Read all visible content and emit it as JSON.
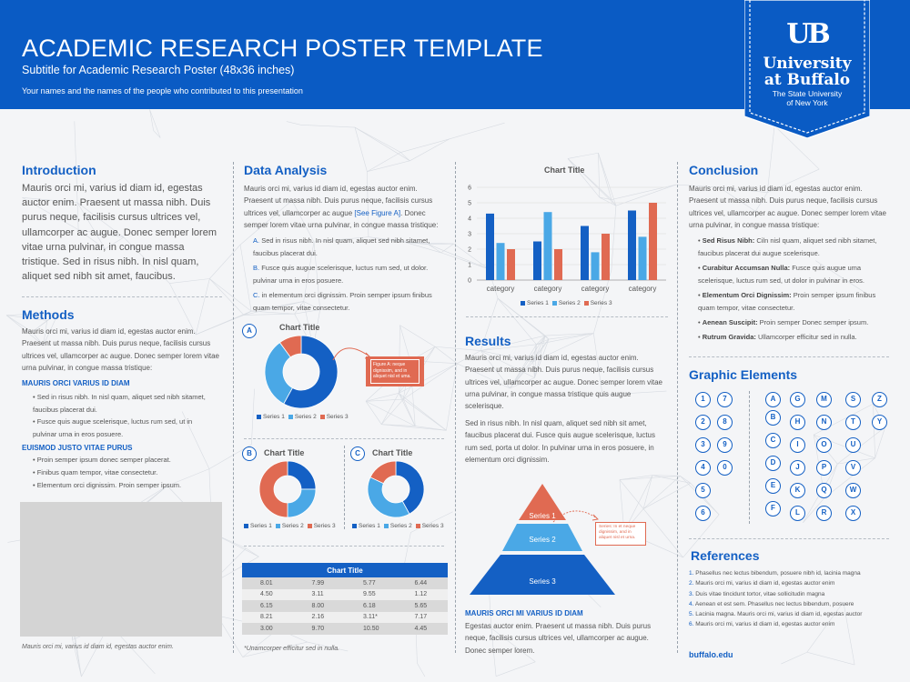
{
  "header": {
    "title": "ACADEMIC RESEARCH POSTER TEMPLATE",
    "subtitle": "Subtitle for Academic Research Poster (48x36 inches)",
    "authors": "Your names and the names of the people who contributed to this presentation"
  },
  "logo": {
    "monogram": "UB",
    "line1": "University",
    "line2": "at Buffalo",
    "line3": "The State University",
    "line4": "of New York",
    "color": "#0a5bc4"
  },
  "introduction": {
    "heading": "Introduction",
    "body": "Mauris orci mi, varius id diam id, egestas auctor enim. Praesent ut massa nibh. Duis purus neque, facilisis cursus ultrices vel, ullamcorper ac augue. Donec semper lorem vitae urna pulvinar, in congue massa tristique. Sed in risus nibh. In nisl quam, aliquet sed nibh sit amet, faucibus."
  },
  "methods": {
    "heading": "Methods",
    "body": "Mauris orci mi, varius id diam id, egestas auctor enim. Praesent ut massa nibh. Duis purus neque, facilisis cursus ultrices vel, ullamcorper ac augue. Donec semper lorem vitae urna pulvinar, in congue massa tristique:",
    "sub1": "MAURIS ORCI VARIUS ID DIAM",
    "bullets1": [
      "Sed in risus nibh. In nisl quam, aliquet sed nibh sitamet, faucibus placerat dui.",
      "Fusce quis augue scelerisque, luctus rum sed, ut in pulvinar urna in eros posuere."
    ],
    "sub2": "EUISMOD JUSTO VITAE PURUS",
    "bullets2": [
      "Proin semper ipsum donec semper placerat.",
      "Finibus quam tempor, vitae consectetur.",
      "Elementum orci dignissim. Proin semper ipsum."
    ],
    "caption": "Mauris orci mi, varius id diam id, egestas auctor enim."
  },
  "data_analysis": {
    "heading": "Data Analysis",
    "body_before_link": "Mauris orci mi, varius id diam id, egestas auctor enim. Praesent ut massa nibh. Duis purus neque, facilisis cursus ultrices vel, ullamcorper ac augue ",
    "link": "[See Figure A]",
    "body_after_link": ". Donec semper lorem vitae urna pulvinar, in congue massa tristique:",
    "list": [
      {
        "marker": "A.",
        "text": "Sed in risus nibh. In nisl quam, aliquet sed nibh sitamet, faucibus placerat dui."
      },
      {
        "marker": "B.",
        "text": "Fusce quis augue scelerisque, luctus rum sed, ut dolor. pulvinar urna in eros posuere."
      },
      {
        "marker": "C.",
        "text": "in elementum orci dignissim. Proin semper ipsum finibus quam tempor, vitae consectetur."
      }
    ],
    "figure_note": "Figure A: neque dignissim, and in aliquet nisl et uma.",
    "table_caption": "*Unamcorper efficitur sed in nulla."
  },
  "chart_data": [
    {
      "type": "bar",
      "title": "Chart Title",
      "categories": [
        "category",
        "category",
        "category",
        "category"
      ],
      "series": [
        {
          "name": "Series 1",
          "values": [
            4.3,
            2.5,
            3.5,
            4.5
          ]
        },
        {
          "name": "Series 2",
          "values": [
            2.4,
            4.4,
            1.8,
            2.8
          ]
        },
        {
          "name": "Series 3",
          "values": [
            2.0,
            2.0,
            3.0,
            5.0
          ]
        }
      ],
      "ylim": [
        0,
        6
      ],
      "yticks": [
        "0",
        "1",
        "2",
        "3",
        "4",
        "5",
        "6"
      ],
      "colors": [
        "#1460c4",
        "#4aa8e6",
        "#e06a52"
      ],
      "legend": "bottom"
    },
    {
      "type": "pie",
      "label": "A",
      "title": "Chart Title",
      "series": [
        {
          "name": "Series 1",
          "value": 58
        },
        {
          "name": "Series 2",
          "value": 32
        },
        {
          "name": "Series 3",
          "value": 10
        }
      ],
      "colors": [
        "#1460c4",
        "#4aa8e6",
        "#e06a52"
      ],
      "legend": "bottom"
    },
    {
      "type": "pie",
      "label": "B",
      "title": "Chart Title",
      "series": [
        {
          "name": "Series 1",
          "value": 25
        },
        {
          "name": "Series 2",
          "value": 25
        },
        {
          "name": "Series 3",
          "value": 50
        }
      ],
      "colors": [
        "#1460c4",
        "#4aa8e6",
        "#e06a52"
      ],
      "legend": "bottom"
    },
    {
      "type": "pie",
      "label": "C",
      "title": "Chart Title",
      "series": [
        {
          "name": "Series 1",
          "value": 42
        },
        {
          "name": "Series 2",
          "value": 40
        },
        {
          "name": "Series 3",
          "value": 18
        }
      ],
      "colors": [
        "#1460c4",
        "#4aa8e6",
        "#e06a52"
      ],
      "legend": "bottom"
    },
    {
      "type": "table",
      "title": "Chart Title",
      "rows": [
        [
          "8.01",
          "7.99",
          "5.77",
          "6.44"
        ],
        [
          "4.50",
          "3.11",
          "9.55",
          "1.12"
        ],
        [
          "6.15",
          "8.00",
          "6.18",
          "5.65"
        ],
        [
          "8.21",
          "2.16",
          "3.11*",
          "7.17"
        ],
        [
          "3.00",
          "9.70",
          "10.50",
          "4.45"
        ]
      ]
    }
  ],
  "results": {
    "heading": "Results",
    "body1": "Mauris orci mi, varius id diam id, egestas auctor enim. Praesent ut massa nibh. Duis purus neque, facilisis cursus ultrices vel, ullamcorper ac augue. Donec semper lorem vitae urna pulvinar, in congue massa tristique quis augue scelerisque.",
    "body2": "Sed in risus nibh. In nisl quam, aliquet sed nibh sit amet, faucibus placerat dui. Fusce quis augue scelerisque, luctus rum sed, porta ut dolor. In pulvinar urna in eros posuere, in elementum orci dignissim.",
    "pyramid": [
      "Series 1",
      "Series 2",
      "Series 3"
    ],
    "pyramid_note": "Series: In et neque dignissim, and in aliquet nisl et urna.",
    "sub": "MAURIS ORCI MI VARIUS ID DIAM",
    "body3": "Egestas auctor enim. Praesent ut massa nibh. Duis purus neque, facilisis cursus ultrices vel, ullamcorper ac augue. Donec semper lorem."
  },
  "conclusion": {
    "heading": "Conclusion",
    "body": "Mauris orci mi, varius id diam id, egestas auctor enim. Praesent ut massa nibh. Duis purus neque, facilisis cursus ultrices vel, ullamcorper ac augue. Donec semper lorem vitae urna pulvinar, in congue massa tristique:",
    "bullets": [
      {
        "bold": "Sed Risus Nibh:",
        "text": " Ciln nisl quam, aliquet sed nibh sitamet, faucibus placerat dui augue scelerisque."
      },
      {
        "bold": "Curabitur Accumsan Nulla:",
        "text": " Fusce quis augue uma scelerisque, luctus rum sed, ut dolor in pulvinar in eros."
      },
      {
        "bold": "Elementum Orci Dignissim:",
        "text": " Proin semper ipsum finibus quam tempor, vitae consectetur."
      },
      {
        "bold": "Aenean Suscipit:",
        "text": " Proin semper Donec semper ipsum."
      },
      {
        "bold": "Rutrum Gravida:",
        "text": " Ullamcorper efficitur sed in nulla."
      }
    ]
  },
  "graphic_elements": {
    "heading": "Graphic Elements",
    "numbers": [
      [
        "1",
        "7"
      ],
      [
        "2",
        "8"
      ],
      [
        "3",
        "9"
      ],
      [
        "4",
        "0"
      ],
      [
        "5"
      ],
      [
        "6"
      ]
    ],
    "letters": [
      [
        "A",
        "G",
        "M",
        "S",
        "Z"
      ],
      [
        "B",
        "H",
        "N",
        "T",
        "Y"
      ],
      [
        "C",
        "I",
        "O",
        "U"
      ],
      [
        "D",
        "J",
        "P",
        "V"
      ],
      [
        "E",
        "K",
        "Q",
        "W"
      ],
      [
        "F",
        "L",
        "R",
        "X"
      ]
    ]
  },
  "references": {
    "heading": "References",
    "items": [
      "Phasellus nec lectus bibendum, posuere nibh id, lacinia magna",
      "Mauris orci mi, varius id diam id, egestas auctor enim",
      "Duis vitae tincidunt tortor, vitae sollicitudin magna",
      "Aenean et est sem. Phasellus nec lectus bibendum, posuere",
      "Lacinia magna. Mauris orci mi, varius id diam id, egestas auctor",
      "Mauris orci mi, varius id diam id, egestas auctor enim"
    ],
    "footer": "buffalo.edu"
  }
}
